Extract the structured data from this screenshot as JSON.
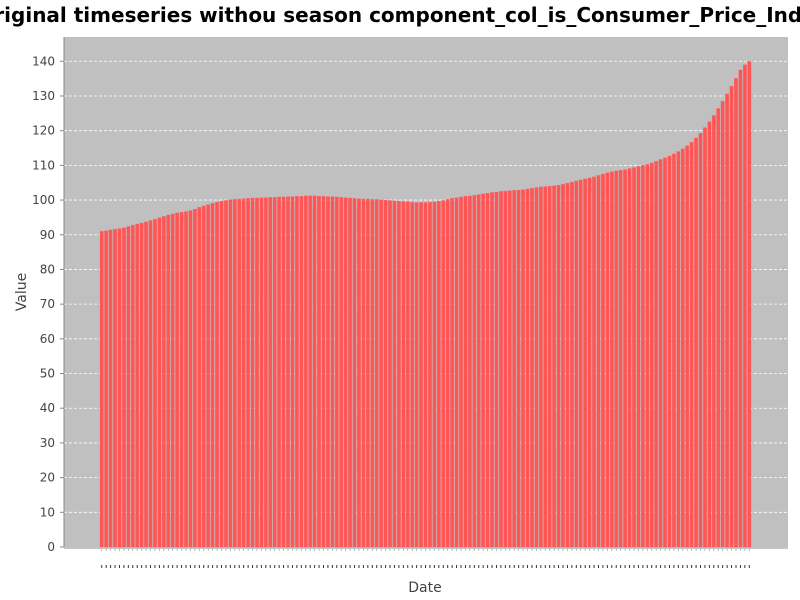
{
  "chart_data": {
    "type": "bar",
    "title": "Original timeseries withou season component_col_is_Consumer_Price_Index",
    "xlabel": "Date",
    "ylabel": "Value",
    "ylim": [
      0,
      147
    ],
    "yticks": [
      0,
      10,
      20,
      30,
      40,
      50,
      60,
      70,
      80,
      90,
      100,
      110,
      120,
      130,
      140
    ],
    "grid": true,
    "legend": "none",
    "colors": {
      "plot_background": "#c0c0c0",
      "bar": "#ff5555",
      "bar_edge": "#f07070",
      "grid": "#ffffff"
    },
    "values": [
      91.0,
      91.2,
      91.4,
      91.6,
      91.8,
      92.0,
      92.4,
      92.8,
      93.1,
      93.4,
      93.7,
      94.1,
      94.5,
      94.9,
      95.3,
      95.7,
      96.0,
      96.3,
      96.5,
      96.7,
      97.0,
      97.4,
      97.9,
      98.3,
      98.7,
      99.1,
      99.4,
      99.7,
      99.9,
      100.1,
      100.2,
      100.3,
      100.4,
      100.5,
      100.6,
      100.6,
      100.7,
      100.7,
      100.8,
      100.8,
      100.9,
      100.9,
      101.0,
      101.0,
      101.1,
      101.1,
      101.2,
      101.2,
      101.2,
      101.1,
      101.1,
      101.0,
      101.0,
      100.9,
      100.8,
      100.7,
      100.6,
      100.5,
      100.4,
      100.3,
      100.3,
      100.2,
      100.2,
      100.1,
      100.0,
      99.9,
      99.8,
      99.7,
      99.6,
      99.5,
      99.4,
      99.3,
      99.3,
      99.3,
      99.4,
      99.5,
      99.7,
      99.9,
      100.2,
      100.5,
      100.7,
      100.9,
      101.1,
      101.2,
      101.4,
      101.6,
      101.8,
      102.0,
      102.2,
      102.3,
      102.5,
      102.6,
      102.7,
      102.8,
      102.9,
      103.0,
      103.2,
      103.4,
      103.6,
      103.8,
      103.9,
      104.0,
      104.1,
      104.3,
      104.6,
      104.9,
      105.2,
      105.5,
      105.8,
      106.1,
      106.4,
      106.7,
      107.1,
      107.5,
      107.9,
      108.2,
      108.4,
      108.6,
      108.8,
      109.1,
      109.4,
      109.7,
      110.0,
      110.3,
      110.7,
      111.2,
      111.7,
      112.2,
      112.7,
      113.3,
      114.0,
      114.8,
      115.7,
      116.7,
      117.9,
      119.3,
      120.9,
      122.6,
      124.4,
      126.4,
      128.5,
      130.6,
      132.8,
      135.1,
      137.5,
      139.0,
      140.0
    ]
  }
}
